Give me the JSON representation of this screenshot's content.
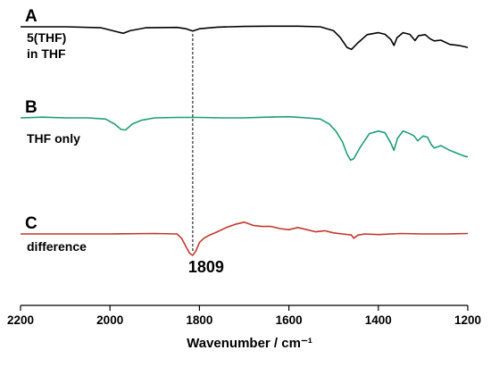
{
  "chart_data": {
    "type": "line",
    "xlabel": "Wavenumber / cm⁻¹",
    "x_range": [
      2200,
      1200
    ],
    "x_ticks": [
      "2200",
      "2000",
      "1800",
      "1600",
      "1400",
      "1200"
    ],
    "y_axis_shown": false,
    "grid": false,
    "panels": [
      {
        "letter": "A",
        "label_lines": [
          "5(THF)",
          "in THF"
        ],
        "color": "#000000",
        "x": [
          2200,
          2100,
          2020,
          1985,
          1970,
          1955,
          1920,
          1850,
          1830,
          1815,
          1800,
          1760,
          1700,
          1640,
          1580,
          1530,
          1500,
          1485,
          1470,
          1460,
          1445,
          1425,
          1400,
          1385,
          1372,
          1365,
          1358,
          1345,
          1330,
          1318,
          1310,
          1295,
          1285,
          1275,
          1260,
          1240,
          1220,
          1200
        ],
        "y": [
          0.0,
          0.0,
          -0.05,
          -0.25,
          -0.33,
          -0.2,
          -0.05,
          -0.03,
          -0.1,
          -0.22,
          -0.1,
          -0.02,
          0.02,
          0.03,
          0.03,
          0.0,
          -0.2,
          -0.55,
          -1.05,
          -1.15,
          -0.8,
          -0.4,
          -0.3,
          -0.38,
          -0.65,
          -0.95,
          -0.55,
          -0.3,
          -0.38,
          -0.7,
          -0.45,
          -0.4,
          -0.6,
          -0.72,
          -0.68,
          -0.9,
          -0.95,
          -1.05
        ]
      },
      {
        "letter": "B",
        "label_lines": [
          "THF only"
        ],
        "color": "#1e9e72",
        "x": [
          2200,
          2150,
          2100,
          2050,
          2010,
          1990,
          1975,
          1965,
          1950,
          1930,
          1900,
          1850,
          1800,
          1750,
          1700,
          1650,
          1600,
          1560,
          1530,
          1510,
          1495,
          1480,
          1470,
          1462,
          1455,
          1440,
          1420,
          1400,
          1385,
          1372,
          1365,
          1357,
          1345,
          1330,
          1320,
          1312,
          1300,
          1290,
          1282,
          1275,
          1260,
          1240,
          1220,
          1205,
          1200
        ],
        "y": [
          0.0,
          0.03,
          0.0,
          0.0,
          -0.05,
          -0.25,
          -0.48,
          -0.5,
          -0.25,
          -0.1,
          0.0,
          0.02,
          0.02,
          0.0,
          0.0,
          0.03,
          0.05,
          0.0,
          -0.05,
          -0.25,
          -0.55,
          -1.0,
          -1.5,
          -1.75,
          -1.7,
          -1.2,
          -0.65,
          -0.55,
          -0.62,
          -1.05,
          -1.35,
          -0.85,
          -0.55,
          -0.65,
          -0.75,
          -0.95,
          -0.75,
          -0.8,
          -1.1,
          -1.25,
          -1.15,
          -1.35,
          -1.5,
          -1.6,
          -1.62
        ]
      },
      {
        "letter": "C",
        "label_lines": [
          "difference"
        ],
        "color": "#c0392b",
        "x": [
          2200,
          2100,
          2000,
          1900,
          1850,
          1840,
          1830,
          1822,
          1815,
          1808,
          1800,
          1790,
          1780,
          1760,
          1740,
          1720,
          1700,
          1680,
          1660,
          1640,
          1620,
          1600,
          1580,
          1560,
          1540,
          1520,
          1500,
          1480,
          1460,
          1455,
          1445,
          1430,
          1400,
          1350,
          1300,
          1250,
          1200
        ],
        "y": [
          0.0,
          0.0,
          0.0,
          0.02,
          0.0,
          -0.2,
          -0.6,
          -0.9,
          -1.0,
          -0.8,
          -0.4,
          -0.2,
          -0.08,
          0.1,
          0.3,
          0.45,
          0.55,
          0.4,
          0.35,
          0.35,
          0.25,
          0.2,
          0.3,
          0.2,
          0.1,
          0.15,
          0.05,
          0.0,
          -0.05,
          -0.2,
          -0.05,
          0.0,
          -0.03,
          0.02,
          0.0,
          0.0,
          0.02
        ]
      }
    ],
    "marker_line": {
      "x": 1815
    },
    "annotation": {
      "text": "1809",
      "x": 1809
    }
  }
}
